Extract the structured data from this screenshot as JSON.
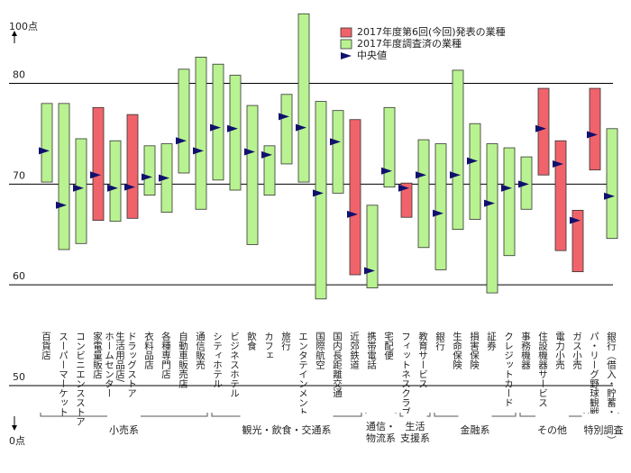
{
  "chart_data": {
    "type": "range",
    "categories": [
      "百貨店",
      "スーパーマーケット",
      "コンビニエンスストア",
      "家電量販店",
      [
        "生活用品店/",
        "ホームセンター"
      ],
      "ドラッグストア",
      "衣料品店",
      "各種専門店",
      "自動車販売店",
      "通信販売",
      "シティホテル",
      "ビジネスホテル",
      "飲食",
      "カフェ",
      "旅行",
      "エンタテインメント",
      "国際航空",
      "国内長距離交通",
      "近郊鉄道",
      "携帯電話",
      "宅配便",
      "フィットネスクラブ",
      "教育サービス",
      "銀行",
      "生命保険",
      "損害保険",
      "証券",
      "クレジットカード",
      "事務機器",
      "住設機器サービス",
      "電力小売",
      "ガス小売",
      "パ・リーグ野球観戦",
      [
        "銀行（借入・貯蓄・投資）"
      ]
    ],
    "high": [
      78.0,
      78.0,
      74.5,
      77.6,
      74.3,
      76.9,
      73.8,
      74.0,
      81.4,
      82.6,
      81.9,
      80.8,
      77.8,
      73.8,
      78.9,
      86.9,
      78.2,
      77.3,
      76.4,
      67.9,
      77.6,
      70.1,
      74.4,
      74.0,
      81.3,
      76.0,
      74.0,
      73.6,
      72.7,
      79.5,
      74.3,
      67.4,
      79.5,
      75.5
    ],
    "low": [
      70.2,
      63.5,
      64.1,
      66.4,
      66.3,
      66.6,
      68.9,
      67.2,
      71.1,
      67.5,
      70.4,
      69.4,
      64.0,
      68.9,
      72.0,
      70.2,
      58.6,
      69.1,
      61.0,
      59.7,
      69.7,
      66.7,
      63.7,
      61.5,
      65.5,
      66.5,
      59.2,
      62.9,
      67.5,
      70.9,
      63.4,
      61.3,
      71.4,
      64.6
    ],
    "median": [
      73.3,
      67.9,
      69.6,
      70.9,
      69.6,
      69.7,
      70.7,
      70.6,
      74.3,
      73.3,
      75.6,
      75.5,
      73.2,
      72.9,
      76.7,
      75.6,
      69.1,
      74.2,
      67.0,
      61.4,
      71.3,
      69.6,
      70.9,
      67.1,
      70.9,
      72.3,
      68.1,
      69.6,
      70.0,
      75.5,
      72.0,
      66.4,
      74.9,
      68.8
    ],
    "colors": [
      "#b9f291",
      "#b9f291",
      "#b9f291",
      "#f0636b",
      "#b9f291",
      "#f0636b",
      "#b9f291",
      "#b9f291",
      "#b9f291",
      "#b9f291",
      "#b9f291",
      "#b9f291",
      "#b9f291",
      "#b9f291",
      "#b9f291",
      "#b9f291",
      "#b9f291",
      "#b9f291",
      "#f0636b",
      "#b9f291",
      "#b9f291",
      "#f0636b",
      "#b9f291",
      "#b9f291",
      "#b9f291",
      "#b9f291",
      "#b9f291",
      "#b9f291",
      "#b9f291",
      "#f0636b",
      "#f0636b",
      "#f0636b",
      "#f0636b",
      "#b9f291"
    ],
    "legend": [
      {
        "name": "2017年度第6回(今回)発表の業種",
        "color": "#f0636b"
      },
      {
        "name": "2017年度調査済の業種",
        "color": "#b9f291"
      },
      {
        "name": "中央値",
        "color": "#10106e"
      }
    ],
    "groups": [
      {
        "label": [
          "小売系"
        ],
        "start": 0,
        "end": 9
      },
      {
        "label": [
          "観光・飲食・交通系"
        ],
        "start": 10,
        "end": 18
      },
      {
        "label": [
          "通信・",
          "物流系"
        ],
        "start": 19,
        "end": 20
      },
      {
        "label": [
          "生活",
          "支援系"
        ],
        "start": 21,
        "end": 22
      },
      {
        "label": [
          "金融系"
        ],
        "start": 23,
        "end": 27
      },
      {
        "label": [
          "その他"
        ],
        "start": 28,
        "end": 31
      },
      {
        "label": [
          "特別調査"
        ],
        "start": 32,
        "end": 33
      }
    ],
    "ylim": [
      50,
      88
    ],
    "yticks": [
      50,
      60,
      70,
      80
    ],
    "grid": true,
    "y_top_label": "100点",
    "y_bottom_label": "0点"
  }
}
